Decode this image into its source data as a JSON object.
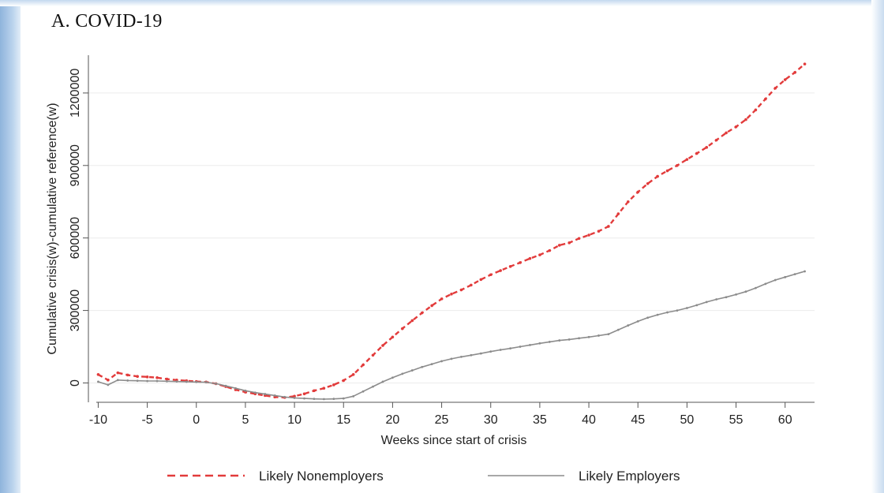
{
  "panel_title": "A.  COVID-19",
  "colors": {
    "nonemployers": "#e23b3b",
    "employers": "#8c8c8c",
    "grid": "#ececec",
    "axis": "#555555",
    "sidebar": "#a9c7e8"
  },
  "chart_data": {
    "type": "line",
    "title": "",
    "xlabel": "Weeks since start of crisis",
    "ylabel": "Cumulative crisis(w)-cumulative reference(w)",
    "xlim": [
      -11,
      63
    ],
    "ylim": [
      -80000,
      1340000
    ],
    "xticks": [
      -10,
      -5,
      0,
      5,
      10,
      15,
      20,
      25,
      30,
      35,
      40,
      45,
      50,
      55,
      60
    ],
    "yticks": [
      0,
      300000,
      600000,
      900000,
      1200000
    ],
    "grid": "horizontal",
    "legend_position": "bottom",
    "x": [
      -10,
      -9,
      -8,
      -7,
      -6,
      -5,
      -4,
      -3,
      -2,
      -1,
      0,
      1,
      2,
      3,
      4,
      5,
      6,
      7,
      8,
      9,
      10,
      11,
      12,
      13,
      14,
      15,
      16,
      17,
      18,
      19,
      20,
      21,
      22,
      23,
      24,
      25,
      26,
      27,
      28,
      29,
      30,
      31,
      32,
      33,
      34,
      35,
      36,
      37,
      38,
      39,
      40,
      41,
      42,
      43,
      44,
      45,
      46,
      47,
      48,
      49,
      50,
      51,
      52,
      53,
      54,
      55,
      56,
      57,
      58,
      59,
      60,
      61,
      62
    ],
    "series": [
      {
        "name": "Likely Nonemployers",
        "style": "dashed",
        "color": "#e23b3b",
        "values": [
          35000,
          12000,
          42000,
          33000,
          27000,
          25000,
          22000,
          16000,
          12000,
          9000,
          6000,
          4000,
          -3000,
          -15000,
          -28000,
          -38000,
          -45000,
          -52000,
          -58000,
          -60000,
          -55000,
          -45000,
          -32000,
          -22000,
          -8000,
          10000,
          35000,
          75000,
          115000,
          155000,
          190000,
          225000,
          258000,
          290000,
          320000,
          348000,
          368000,
          385000,
          405000,
          428000,
          448000,
          465000,
          482000,
          498000,
          515000,
          530000,
          548000,
          570000,
          580000,
          598000,
          612000,
          628000,
          648000,
          700000,
          750000,
          790000,
          825000,
          855000,
          878000,
          900000,
          925000,
          950000,
          975000,
          1005000,
          1035000,
          1060000,
          1090000,
          1130000,
          1175000,
          1220000,
          1255000,
          1285000,
          1320000
        ]
      },
      {
        "name": "Likely Employers",
        "style": "solid",
        "color": "#8c8c8c",
        "values": [
          5000,
          -8000,
          12000,
          10000,
          9000,
          8000,
          8000,
          7000,
          6000,
          5000,
          4000,
          3000,
          -3000,
          -12000,
          -22000,
          -32000,
          -40000,
          -46000,
          -52000,
          -58000,
          -62000,
          -64000,
          -66000,
          -67000,
          -66000,
          -64000,
          -55000,
          -35000,
          -15000,
          5000,
          22000,
          38000,
          52000,
          66000,
          78000,
          90000,
          100000,
          108000,
          115000,
          122000,
          130000,
          137000,
          143000,
          150000,
          157000,
          164000,
          170000,
          176000,
          180000,
          185000,
          190000,
          196000,
          202000,
          220000,
          238000,
          255000,
          270000,
          282000,
          292000,
          300000,
          310000,
          322000,
          335000,
          346000,
          355000,
          366000,
          378000,
          393000,
          410000,
          426000,
          438000,
          450000,
          462000
        ]
      }
    ]
  }
}
